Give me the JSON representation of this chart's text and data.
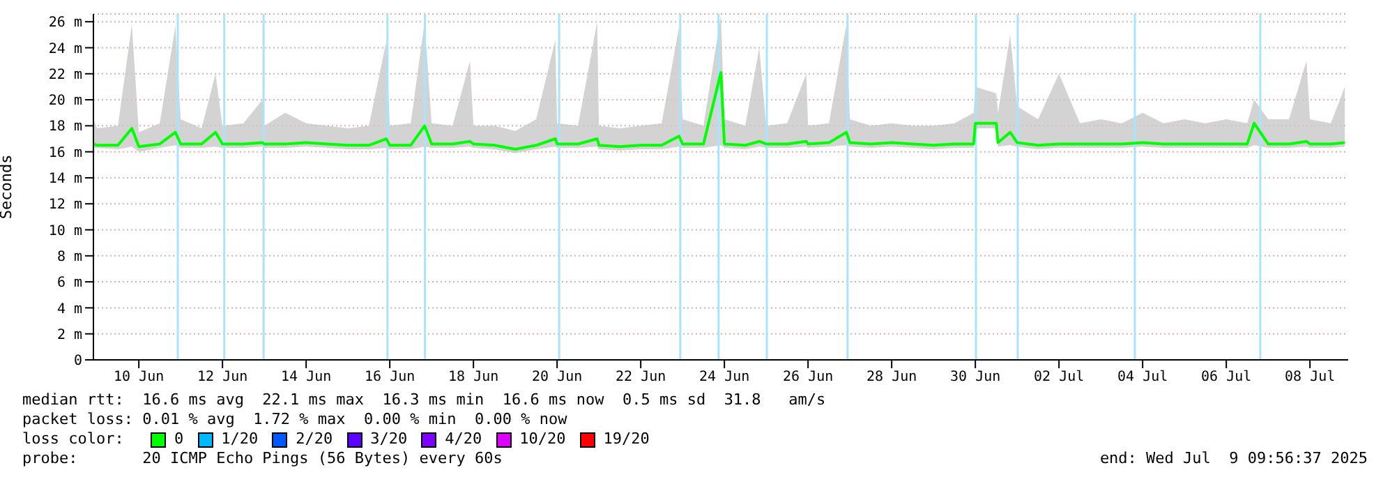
{
  "chart_data": {
    "type": "line",
    "ylabel": "Seconds",
    "legend_title": "loss color:",
    "legend": "bottom",
    "grid": "y",
    "marker": "none",
    "line_style": "solid",
    "xlim": [
      "2025-06-09T09:56",
      "2025-07-09T09:56"
    ],
    "xticks": [
      {
        "value": "2025-06-10T12:00",
        "label": "10 Jun"
      },
      {
        "value": "2025-06-12T12:00",
        "label": "12 Jun"
      },
      {
        "value": "2025-06-14T12:00",
        "label": "14 Jun"
      },
      {
        "value": "2025-06-16T12:00",
        "label": "16 Jun"
      },
      {
        "value": "2025-06-18T12:00",
        "label": "18 Jun"
      },
      {
        "value": "2025-06-20T12:00",
        "label": "20 Jun"
      },
      {
        "value": "2025-06-22T12:00",
        "label": "22 Jun"
      },
      {
        "value": "2025-06-24T12:00",
        "label": "24 Jun"
      },
      {
        "value": "2025-06-26T12:00",
        "label": "26 Jun"
      },
      {
        "value": "2025-06-28T12:00",
        "label": "28 Jun"
      },
      {
        "value": "2025-06-30T12:00",
        "label": "30 Jun"
      },
      {
        "value": "2025-07-02T12:00",
        "label": "02 Jul"
      },
      {
        "value": "2025-07-04T12:00",
        "label": "04 Jul"
      },
      {
        "value": "2025-07-06T12:00",
        "label": "06 Jul"
      },
      {
        "value": "2025-07-08T12:00",
        "label": "08 Jul"
      }
    ],
    "ylim": [
      0,
      26.6
    ],
    "yticks": [
      0,
      {
        "value": 2,
        "label": "2 m"
      },
      {
        "value": 4,
        "label": "4 m"
      },
      {
        "value": 6,
        "label": "6 m"
      },
      {
        "value": 8,
        "label": "8 m"
      },
      {
        "value": 10,
        "label": "10 m"
      },
      {
        "value": 12,
        "label": "12 m"
      },
      {
        "value": 14,
        "label": "14 m"
      },
      {
        "value": 16,
        "label": "16 m"
      },
      {
        "value": 18,
        "label": "18 m"
      },
      {
        "value": 20,
        "label": "20 m"
      },
      {
        "value": 22,
        "label": "22 m"
      },
      {
        "value": 24,
        "label": "24 m"
      },
      {
        "value": 26,
        "label": "26 m"
      }
    ],
    "x": [
      "2025-06-09T10:00",
      "2025-06-09T12:00",
      "2025-06-10T00:00",
      "2025-06-10T08:00",
      "2025-06-10T12:00",
      "2025-06-11T00:00",
      "2025-06-11T09:00",
      "2025-06-11T12:00",
      "2025-06-12T00:00",
      "2025-06-12T08:00",
      "2025-06-12T12:00",
      "2025-06-13T00:00",
      "2025-06-13T11:00",
      "2025-06-13T12:00",
      "2025-06-14T00:00",
      "2025-06-14T12:00",
      "2025-06-15T00:00",
      "2025-06-15T12:00",
      "2025-06-16T00:00",
      "2025-06-16T10:00",
      "2025-06-16T12:00",
      "2025-06-17T00:00",
      "2025-06-17T08:00",
      "2025-06-17T12:00",
      "2025-06-18T00:00",
      "2025-06-18T10:00",
      "2025-06-18T12:00",
      "2025-06-19T00:00",
      "2025-06-19T12:00",
      "2025-06-20T00:00",
      "2025-06-20T11:00",
      "2025-06-20T12:00",
      "2025-06-21T00:00",
      "2025-06-21T11:00",
      "2025-06-21T12:00",
      "2025-06-22T00:00",
      "2025-06-22T12:00",
      "2025-06-23T00:00",
      "2025-06-23T10:00",
      "2025-06-23T12:00",
      "2025-06-24T00:00",
      "2025-06-24T10:00",
      "2025-06-24T12:00",
      "2025-06-25T00:00",
      "2025-06-25T08:00",
      "2025-06-25T12:00",
      "2025-06-26T00:00",
      "2025-06-26T11:00",
      "2025-06-26T12:00",
      "2025-06-27T00:00",
      "2025-06-27T10:00",
      "2025-06-27T12:00",
      "2025-06-28T00:00",
      "2025-06-28T12:00",
      "2025-06-29T00:00",
      "2025-06-29T12:00",
      "2025-06-30T00:00",
      "2025-06-30T11:00",
      "2025-06-30T12:00",
      "2025-07-01T00:00",
      "2025-07-01T01:00",
      "2025-07-01T08:00",
      "2025-07-01T12:00",
      "2025-07-02T00:00",
      "2025-07-02T12:00",
      "2025-07-03T00:00",
      "2025-07-03T12:00",
      "2025-07-04T00:00",
      "2025-07-04T12:00",
      "2025-07-05T00:00",
      "2025-07-05T12:00",
      "2025-07-06T00:00",
      "2025-07-06T12:00",
      "2025-07-07T00:00",
      "2025-07-07T04:00",
      "2025-07-07T12:00",
      "2025-07-08T00:00",
      "2025-07-08T10:00",
      "2025-07-08T12:00",
      "2025-07-09T00:00",
      "2025-07-09T08:00"
    ],
    "series": [
      {
        "name": "0",
        "color": "#00ff00",
        "values": [
          16.6,
          16.5,
          16.5,
          17.8,
          16.4,
          16.6,
          17.5,
          16.6,
          16.6,
          17.5,
          16.6,
          16.6,
          16.7,
          16.6,
          16.6,
          16.7,
          16.6,
          16.5,
          16.5,
          17,
          16.5,
          16.5,
          18,
          16.6,
          16.6,
          16.8,
          16.6,
          16.5,
          16.2,
          16.5,
          17,
          16.6,
          16.6,
          17,
          16.5,
          16.4,
          16.5,
          16.5,
          17.2,
          16.6,
          16.6,
          22.1,
          16.6,
          16.5,
          16.8,
          16.6,
          16.6,
          16.8,
          16.6,
          16.7,
          17.5,
          16.7,
          16.6,
          16.7,
          16.6,
          16.5,
          16.6,
          16.6,
          18.2,
          18.2,
          16.7,
          17.5,
          16.7,
          16.5,
          16.6,
          16.6,
          16.6,
          16.6,
          16.7,
          16.6,
          16.6,
          16.6,
          16.6,
          16.6,
          18.2,
          16.6,
          16.6,
          16.8,
          16.6,
          16.6,
          16.7
        ],
        "lower": [
          16.3,
          16.3,
          16.2,
          16.4,
          16,
          16.3,
          16.5,
          16.3,
          16.3,
          16.4,
          16.3,
          16.3,
          16.4,
          16.3,
          16.3,
          16.4,
          16.3,
          16.2,
          16.2,
          16.3,
          16.2,
          16.2,
          16.4,
          16.3,
          16.3,
          16.4,
          16.3,
          16.2,
          15.9,
          16.2,
          16.4,
          16.3,
          16.3,
          16.4,
          16.2,
          16.1,
          16.2,
          16.2,
          16.4,
          16.3,
          16.3,
          16.5,
          16.3,
          16.2,
          16.4,
          16.3,
          16.3,
          16.4,
          16.3,
          16.4,
          16.5,
          16.4,
          16.3,
          16.4,
          16.3,
          16.2,
          16.3,
          16.3,
          17.8,
          17.8,
          16.4,
          16.5,
          16.4,
          16.2,
          16.3,
          16.3,
          16.3,
          16.3,
          16.4,
          16.3,
          16.3,
          16.3,
          16.3,
          16.3,
          16.5,
          16.3,
          16.3,
          16.4,
          16.3,
          16.3,
          16.4
        ],
        "upper": [
          18.5,
          17.8,
          18,
          25.8,
          17.5,
          18.2,
          25.7,
          18.5,
          17.8,
          22,
          18,
          18.2,
          20,
          18,
          19,
          18.2,
          18,
          17.8,
          18,
          24.5,
          18,
          18.2,
          26,
          18.2,
          18,
          23,
          18,
          18,
          17.6,
          18.5,
          24.6,
          18.2,
          18,
          26,
          18,
          17.8,
          18,
          18.2,
          25.6,
          18.5,
          18,
          26.5,
          18.5,
          18,
          24,
          18,
          18.2,
          22,
          18,
          18.2,
          25.8,
          18.5,
          18,
          18.2,
          18,
          18,
          18.2,
          19,
          21,
          20.5,
          19,
          25,
          19.5,
          18.5,
          22,
          18.2,
          18.5,
          18.2,
          19,
          18.2,
          18.5,
          18.2,
          18.5,
          18.2,
          20,
          18.5,
          18.5,
          23,
          18.5,
          18.2,
          21
        ]
      },
      {
        "name": "1/20",
        "color": "#00b8ff",
        "values": [
          null,
          null,
          null,
          null,
          null,
          null,
          null,
          null,
          null,
          null,
          null,
          null,
          null,
          null,
          null,
          null,
          null,
          null,
          null,
          null,
          null,
          null,
          null,
          null,
          null,
          null,
          null,
          null,
          null,
          null,
          null,
          null,
          null,
          null,
          null,
          null,
          null,
          null,
          null,
          null,
          null,
          null,
          null,
          null,
          null,
          null,
          null,
          null,
          null,
          null,
          null,
          null,
          null,
          null,
          null,
          null,
          null,
          null,
          null,
          null,
          null,
          null,
          null,
          null,
          null,
          null,
          null,
          null,
          null,
          null,
          null,
          null,
          null,
          null,
          null,
          null,
          null,
          null,
          null,
          null,
          null
        ]
      },
      {
        "name": "2/20",
        "color": "#0059ff",
        "values": [
          null,
          null,
          null,
          null,
          null,
          null,
          null,
          null,
          null,
          null,
          null,
          null,
          null,
          null,
          null,
          null,
          null,
          null,
          null,
          null,
          null,
          null,
          null,
          null,
          null,
          null,
          null,
          null,
          null,
          null,
          null,
          null,
          null,
          null,
          null,
          null,
          null,
          null,
          null,
          null,
          null,
          null,
          null,
          null,
          null,
          null,
          null,
          null,
          null,
          null,
          null,
          null,
          null,
          null,
          null,
          null,
          null,
          null,
          null,
          null,
          null,
          null,
          null,
          null,
          null,
          null,
          null,
          null,
          null,
          null,
          null,
          null,
          null,
          null,
          null,
          null,
          null,
          null,
          null,
          null,
          null
        ]
      },
      {
        "name": "3/20",
        "color": "#5e00ff",
        "values": [
          null,
          null,
          null,
          null,
          null,
          null,
          null,
          null,
          null,
          null,
          null,
          null,
          null,
          null,
          null,
          null,
          null,
          null,
          null,
          null,
          null,
          null,
          null,
          null,
          null,
          null,
          null,
          null,
          null,
          null,
          null,
          null,
          null,
          null,
          null,
          null,
          null,
          null,
          null,
          null,
          null,
          null,
          null,
          null,
          null,
          null,
          null,
          null,
          null,
          null,
          null,
          null,
          null,
          null,
          null,
          null,
          null,
          null,
          null,
          null,
          null,
          null,
          null,
          null,
          null,
          null,
          null,
          null,
          null,
          null,
          null,
          null,
          null,
          null,
          null,
          null,
          null,
          null,
          null,
          null,
          null
        ]
      },
      {
        "name": "4/20",
        "color": "#7e00ff",
        "values": [
          null,
          null,
          null,
          null,
          null,
          null,
          null,
          null,
          null,
          null,
          null,
          null,
          null,
          null,
          null,
          null,
          null,
          null,
          null,
          null,
          null,
          null,
          null,
          null,
          null,
          null,
          null,
          null,
          null,
          null,
          null,
          null,
          null,
          null,
          null,
          null,
          null,
          null,
          null,
          null,
          null,
          null,
          null,
          null,
          null,
          null,
          null,
          null,
          null,
          null,
          null,
          null,
          null,
          null,
          null,
          null,
          null,
          null,
          null,
          null,
          null,
          null,
          null,
          null,
          null,
          null,
          null,
          null,
          null,
          null,
          null,
          null,
          null,
          null,
          null,
          null,
          null,
          null,
          null,
          null,
          null
        ]
      },
      {
        "name": "10/20",
        "color": "#dd00ff",
        "values": [
          null,
          null,
          null,
          null,
          null,
          null,
          null,
          null,
          null,
          null,
          null,
          null,
          null,
          null,
          null,
          null,
          null,
          null,
          null,
          null,
          null,
          null,
          null,
          null,
          null,
          null,
          null,
          null,
          null,
          null,
          null,
          null,
          null,
          null,
          null,
          null,
          null,
          null,
          null,
          null,
          null,
          null,
          null,
          null,
          null,
          null,
          null,
          null,
          null,
          null,
          null,
          null,
          null,
          null,
          null,
          null,
          null,
          null,
          null,
          null,
          null,
          null,
          null,
          null,
          null,
          null,
          null,
          null,
          null,
          null,
          null,
          null,
          null,
          null,
          null,
          null,
          null,
          null,
          null,
          null,
          null
        ]
      },
      {
        "name": "19/20",
        "color": "#ff0000",
        "values": [
          null,
          null,
          null,
          null,
          null,
          null,
          null,
          null,
          null,
          null,
          null,
          null,
          null,
          null,
          null,
          null,
          null,
          null,
          null,
          null,
          null,
          null,
          null,
          null,
          null,
          null,
          null,
          null,
          null,
          null,
          null,
          null,
          null,
          null,
          null,
          null,
          null,
          null,
          null,
          null,
          null,
          null,
          null,
          null,
          null,
          null,
          null,
          null,
          null,
          null,
          null,
          null,
          null,
          null,
          null,
          null,
          null,
          null,
          null,
          null,
          null,
          null,
          null,
          null,
          null,
          null,
          null,
          null,
          null,
          null,
          null,
          null,
          null,
          null,
          null,
          null,
          null,
          null,
          null,
          null,
          null
        ]
      }
    ],
    "ref_lines": [
      {
        "axis": "x",
        "value": "2025-06-11T10:20",
        "color": "#a8e4ff"
      },
      {
        "axis": "x",
        "value": "2025-06-12T13:00",
        "color": "#a8e4ff"
      },
      {
        "axis": "x",
        "value": "2025-06-13T11:35",
        "color": "#a8e4ff"
      },
      {
        "axis": "x",
        "value": "2025-06-16T10:40",
        "color": "#a8e4ff"
      },
      {
        "axis": "x",
        "value": "2025-06-17T08:10",
        "color": "#a8e4ff"
      },
      {
        "axis": "x",
        "value": "2025-06-20T13:10",
        "color": "#a8e4ff"
      },
      {
        "axis": "x",
        "value": "2025-06-23T10:40",
        "color": "#a8e4ff"
      },
      {
        "axis": "x",
        "value": "2025-06-24T08:40",
        "color": "#a8e4ff"
      },
      {
        "axis": "x",
        "value": "2025-06-25T12:20",
        "color": "#a8e4ff"
      },
      {
        "axis": "x",
        "value": "2025-06-27T10:40",
        "color": "#a8e4ff"
      },
      {
        "axis": "x",
        "value": "2025-06-30T12:20",
        "color": "#a8e4ff"
      },
      {
        "axis": "x",
        "value": "2025-07-01T12:20",
        "color": "#a8e4ff"
      },
      {
        "axis": "x",
        "value": "2025-07-04T07:30",
        "color": "#a8e4ff"
      },
      {
        "axis": "x",
        "value": "2025-07-07T07:30",
        "color": "#a8e4ff"
      }
    ],
    "annotations": [
      "median rtt:  16.6 ms avg  22.1 ms max  16.3 ms min  16.6 ms now  0.5 ms sd  31.8   am/s",
      "packet loss: 0.01 % avg  1.72 % max  0.00 % min  0.00 % now",
      "probe:       20 ICMP Echo Pings (56 Bytes) every 60s",
      "end: Wed Jul  9 09:56:37 2025"
    ]
  }
}
